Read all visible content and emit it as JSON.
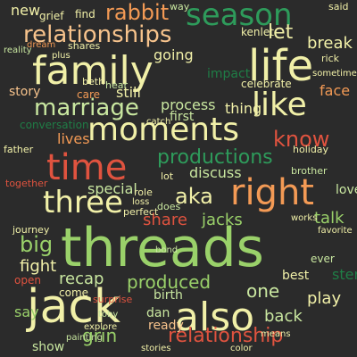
{
  "background": "#2b2b2b",
  "palette": {
    "green": "#9ad16a",
    "mint": "#c9e7a0",
    "yellow": "#f1f0a8",
    "orange": "#f39a55",
    "red": "#e0533f",
    "teal": "#2e9b5b",
    "dark_green": "#1f7d46",
    "peach": "#f7c38c"
  },
  "words": [
    "threads",
    "jack",
    "family",
    "life",
    "moments",
    "three",
    "time",
    "right",
    "also",
    "season",
    "relationships",
    "relationship",
    "like",
    "marriage",
    "rabbit",
    "know",
    "productions",
    "aka",
    "big",
    "fight",
    "recap",
    "share",
    "jacks",
    "produced",
    "one",
    "grin",
    "show",
    "say",
    "new",
    "let",
    "break",
    "thing",
    "process",
    "discuss",
    "special",
    "story",
    "lives",
    "love",
    "sterling",
    "back",
    "play",
    "talk",
    "best",
    "conversation",
    "impact",
    "celebrate",
    "face",
    "still",
    "going",
    "first",
    "birth",
    "dan",
    "ready",
    "kenlet",
    "find",
    "grief",
    "beth",
    "perfect",
    "journey",
    "open",
    "come",
    "hear",
    "surprise",
    "ever",
    "care",
    "together",
    "holiday",
    "brother",
    "way",
    "said",
    "dream",
    "shares",
    "plus",
    "reality",
    "father",
    "role",
    "lot",
    "does",
    "bond",
    "loss",
    "favorite",
    "catch",
    "color",
    "stories",
    "explore",
    "toby",
    "painting",
    "means",
    "works",
    "rick",
    "sometimes"
  ]
}
